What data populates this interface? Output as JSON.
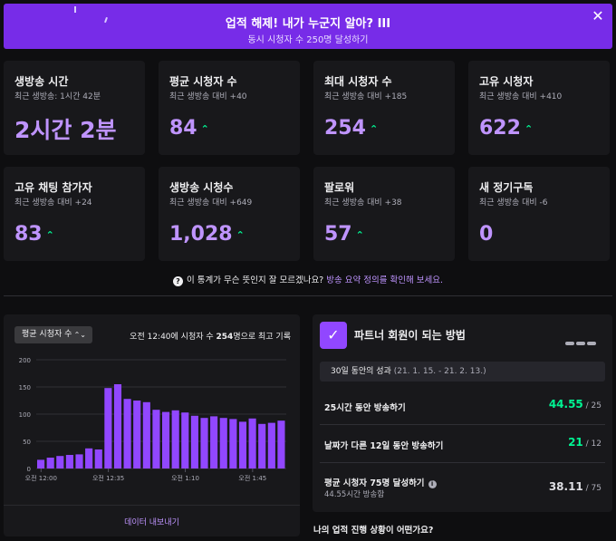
{
  "banner": {
    "title": "업적 해제! 내가 누군지 알아? III",
    "subtitle": "동시 시청자 수 250명 달성하기",
    "close_icon": "close-icon"
  },
  "stats": [
    {
      "label": "생방송 시간",
      "compare": "최근 생방송: 1시간 42분",
      "value": "2시간 2분",
      "trend": ""
    },
    {
      "label": "평균 시청자 수",
      "compare": "최근 생방송 대비 +40",
      "value": "84",
      "trend": "up"
    },
    {
      "label": "최대 시청자 수",
      "compare": "최근 생방송 대비 +185",
      "value": "254",
      "trend": "up"
    },
    {
      "label": "고유 시청자",
      "compare": "최근 생방송 대비 +410",
      "value": "622",
      "trend": "up"
    },
    {
      "label": "고유 채팅 참가자",
      "compare": "최근 생방송 대비 +24",
      "value": "83",
      "trend": "up"
    },
    {
      "label": "생방송 시청수",
      "compare": "최근 생방송 대비 +649",
      "value": "1,028",
      "trend": "up"
    },
    {
      "label": "팔로워",
      "compare": "최근 생방송 대비 +38",
      "value": "57",
      "trend": "up"
    },
    {
      "label": "새 정기구독",
      "compare": "최근 생방송 대비 -6",
      "value": "0",
      "trend": ""
    }
  ],
  "help": {
    "text": "이 통계가 무슨 뜻인지 잘 모르겠나요?",
    "link": "방송 요약 정의를 확인해 보세요."
  },
  "chart_panel": {
    "dropdown": "평균 시청자 수",
    "peak_pre": "오전 12:40에 시청자 수 ",
    "peak_num": "254",
    "peak_post": "명으로 최고 기록",
    "export": "데이터 내보내기"
  },
  "chart_data": {
    "type": "bar",
    "x": [
      "오전 12:00",
      "",
      "",
      "",
      "",
      "",
      "",
      "오전 12:35",
      "",
      "",
      "",
      "",
      "",
      "",
      "",
      "오전 1:10",
      "",
      "",
      "",
      "",
      "",
      "",
      "오전 1:45",
      "",
      "",
      ""
    ],
    "xticks": [
      "오전 12:00",
      "오전 12:35",
      "오전 1:10",
      "오전 1:45"
    ],
    "values": [
      16,
      20,
      23,
      25,
      26,
      37,
      35,
      148,
      155,
      128,
      125,
      122,
      108,
      104,
      107,
      103,
      97,
      93,
      96,
      93,
      91,
      86,
      92,
      82,
      84,
      88
    ],
    "ylim": [
      0,
      200
    ],
    "yticks": [
      0,
      50,
      100,
      150,
      200
    ],
    "color": "#9147ff",
    "grid": true
  },
  "partner": {
    "title": "파트너 회원이 되는 방법",
    "period_label": "30일 동안의 성과",
    "period_range": " (21. 1. 15. - 21. 2. 13.)",
    "goals": [
      {
        "name": "25시간 동안 방송하기",
        "sub": "",
        "value": "44.55",
        "of": " / 25",
        "met": true
      },
      {
        "name": "날짜가 다른 12일 동안 방송하기",
        "sub": "",
        "value": "21",
        "of": " / 12",
        "met": true
      },
      {
        "name": "평균 시청자 75명 달성하기",
        "sub": "44.55시간 방송함",
        "value": "38.11",
        "of": " / 75",
        "met": false
      }
    ]
  },
  "footer_question": "나의 업적 진행 상황이 어떤가요?"
}
